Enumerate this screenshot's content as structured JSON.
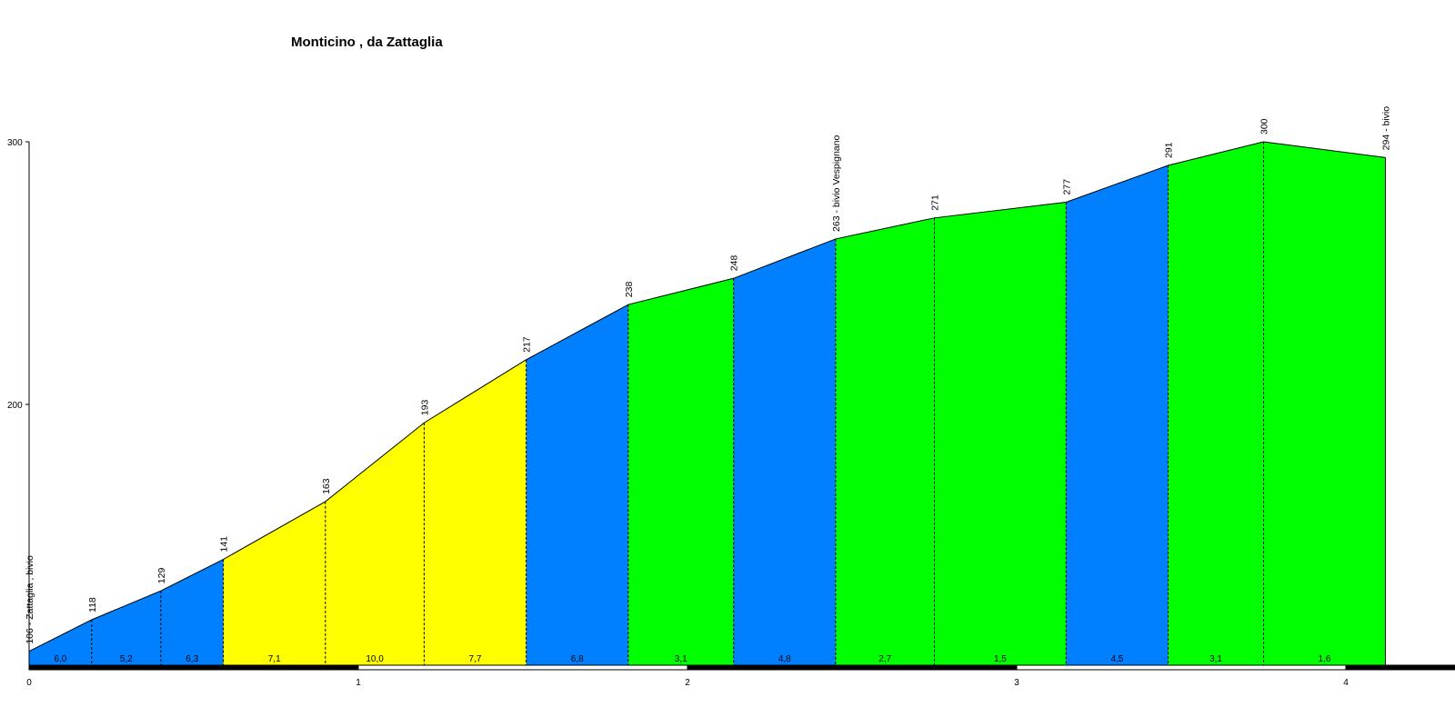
{
  "chart_data": {
    "type": "area",
    "title": "Monticino , da Zattaglia",
    "xlabel": "",
    "ylabel": "",
    "xlim": [
      0,
      4.42
    ],
    "ylim": [
      95,
      300
    ],
    "x_ticks": [
      0,
      1,
      2,
      3,
      4
    ],
    "y_ticks": [
      200,
      300
    ],
    "colors": {
      "blue": "#0080ff",
      "yellow": "#ffff00",
      "green": "#00ff00",
      "outline": "#000000"
    },
    "points": [
      {
        "x": 0.0,
        "y": 106,
        "label": "106 - Zattaglia , bivio"
      },
      {
        "x": 0.19,
        "y": 118,
        "label": "118"
      },
      {
        "x": 0.4,
        "y": 129,
        "label": "129"
      },
      {
        "x": 0.59,
        "y": 141,
        "label": "141"
      },
      {
        "x": 0.9,
        "y": 163,
        "label": "163"
      },
      {
        "x": 1.2,
        "y": 193,
        "label": "193"
      },
      {
        "x": 1.51,
        "y": 217,
        "label": "217"
      },
      {
        "x": 1.82,
        "y": 238,
        "label": "238"
      },
      {
        "x": 2.14,
        "y": 248,
        "label": "248"
      },
      {
        "x": 2.45,
        "y": 263,
        "label": "263 - bivio Vespignano"
      },
      {
        "x": 2.75,
        "y": 271,
        "label": "271"
      },
      {
        "x": 3.15,
        "y": 277,
        "label": "277"
      },
      {
        "x": 3.46,
        "y": 291,
        "label": "291"
      },
      {
        "x": 3.75,
        "y": 300,
        "label": "300"
      },
      {
        "x": 4.12,
        "y": 294,
        "label": "294 - bivio"
      }
    ],
    "segments": [
      {
        "grade": "6,0",
        "color": "blue"
      },
      {
        "grade": "5,2",
        "color": "blue"
      },
      {
        "grade": "6,3",
        "color": "blue"
      },
      {
        "grade": "7,1",
        "color": "yellow"
      },
      {
        "grade": "10,0",
        "color": "yellow"
      },
      {
        "grade": "7,7",
        "color": "yellow"
      },
      {
        "grade": "6,8",
        "color": "blue"
      },
      {
        "grade": "3,1",
        "color": "green"
      },
      {
        "grade": "4,8",
        "color": "blue"
      },
      {
        "grade": "2,7",
        "color": "green"
      },
      {
        "grade": "1,5",
        "color": "green"
      },
      {
        "grade": "4,5",
        "color": "blue"
      },
      {
        "grade": "3,1",
        "color": "green"
      },
      {
        "grade": "1,6",
        "color": "green"
      }
    ]
  }
}
